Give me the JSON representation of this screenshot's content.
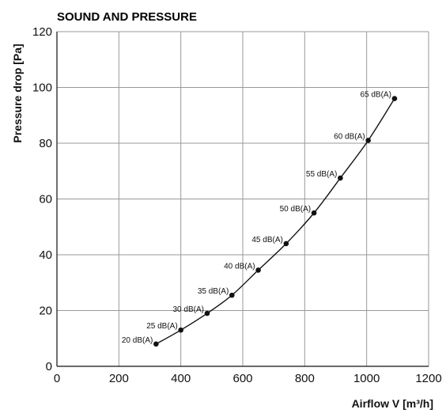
{
  "chart_data": {
    "type": "line",
    "title": "SOUND AND PRESSURE",
    "xlabel": "Airflow V [m³/h]",
    "ylabel": "Pressure drop [Pa]",
    "xlim": [
      0,
      1200
    ],
    "ylim": [
      0,
      120
    ],
    "xticks": [
      "0",
      "200",
      "400",
      "600",
      "800",
      "1000",
      "1200"
    ],
    "yticks": [
      "0",
      "20",
      "40",
      "60",
      "80",
      "100",
      "120"
    ],
    "grid": true,
    "series": [
      {
        "x": [
          320,
          400,
          485,
          565,
          650,
          740,
          830,
          915,
          1005,
          1090
        ],
        "y": [
          8,
          13,
          19,
          25.5,
          34.5,
          44,
          55,
          67.5,
          81,
          96
        ],
        "labels": [
          "20 dB(A)",
          "25 dB(A)",
          "30 dB(A)",
          "35 dB(A)",
          "40 dB(A)",
          "45 dB(A)",
          "50 dB(A)",
          "55 dB(A)",
          "60 dB(A)",
          "65 dB(A)"
        ]
      }
    ],
    "colors": {
      "line": "#111111",
      "grid": "#999999",
      "axis": "#111111"
    }
  }
}
